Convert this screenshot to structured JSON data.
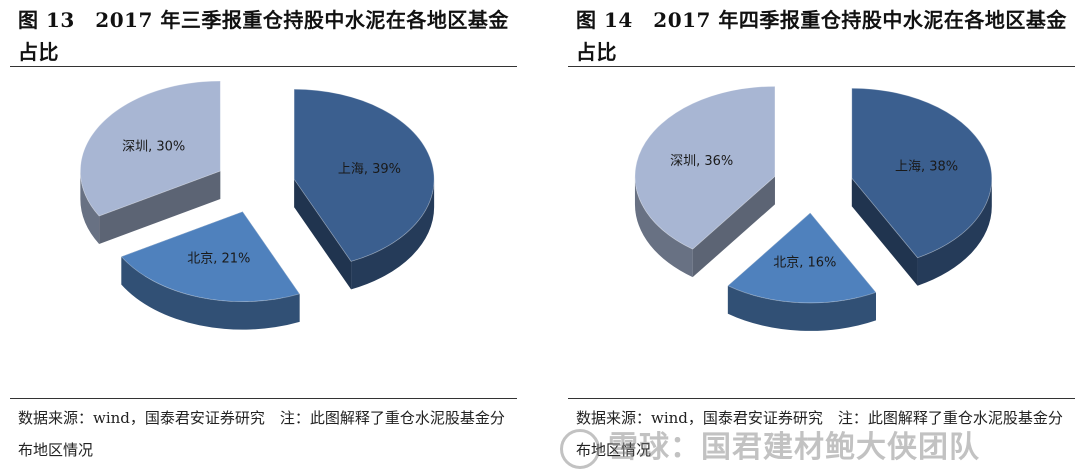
{
  "figures": [
    {
      "title": "图 13　2017 年三季报重仓持股中水泥在各地区基金占比",
      "source": "数据来源：wind，国泰君安证券研究　注：此图解释了重仓水泥股基金分布地区情况"
    },
    {
      "title": "图 14　2017 年四季报重仓持股中水泥在各地区基金占比",
      "source": "数据来源：wind，国泰君安证券研究　注：此图解释了重仓水泥股基金分布地区情况"
    }
  ],
  "chart_data": [
    {
      "type": "pie",
      "style": "3d-exploded",
      "categories": [
        "上海",
        "北京",
        "深圳"
      ],
      "values": [
        39,
        21,
        30
      ],
      "labels": [
        "上海, 39%",
        "北京, 21%",
        "深圳, 30%"
      ],
      "colors": [
        "#3b5f8f",
        "#4f81bd",
        "#a8b6d3"
      ]
    },
    {
      "type": "pie",
      "style": "3d-exploded",
      "categories": [
        "上海",
        "北京",
        "深圳"
      ],
      "values": [
        38,
        16,
        36
      ],
      "labels": [
        "上海, 38%",
        "北京, 16%",
        "深圳, 36%"
      ],
      "colors": [
        "#3b5f8f",
        "#4f81bd",
        "#a8b6d3"
      ]
    }
  ],
  "watermark": "雪球：国君建材鲍大侠团队"
}
